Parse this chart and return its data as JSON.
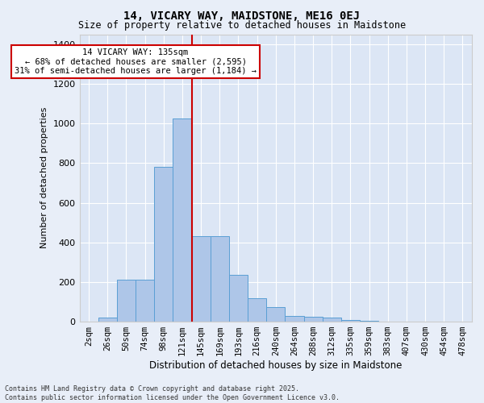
{
  "title1": "14, VICARY WAY, MAIDSTONE, ME16 0EJ",
  "title2": "Size of property relative to detached houses in Maidstone",
  "xlabel": "Distribution of detached houses by size in Maidstone",
  "ylabel": "Number of detached properties",
  "categories": [
    "2sqm",
    "26sqm",
    "50sqm",
    "74sqm",
    "98sqm",
    "121sqm",
    "145sqm",
    "169sqm",
    "193sqm",
    "216sqm",
    "240sqm",
    "264sqm",
    "288sqm",
    "312sqm",
    "335sqm",
    "359sqm",
    "383sqm",
    "407sqm",
    "430sqm",
    "454sqm",
    "478sqm"
  ],
  "values": [
    0,
    20,
    210,
    210,
    780,
    1025,
    430,
    430,
    235,
    120,
    75,
    30,
    25,
    20,
    10,
    5,
    2,
    0,
    0,
    0,
    0
  ],
  "bar_color": "#aec6e8",
  "bar_edge_color": "#5a9fd4",
  "fig_background": "#e8eef8",
  "ax_background": "#dce6f5",
  "grid_color": "#ffffff",
  "red_line_x": 5.5,
  "annotation_text": "14 VICARY WAY: 135sqm\n← 68% of detached houses are smaller (2,595)\n31% of semi-detached houses are larger (1,184) →",
  "annotation_box_color": "#ffffff",
  "annotation_box_edge": "#cc0000",
  "ylim": [
    0,
    1450
  ],
  "yticks": [
    0,
    200,
    400,
    600,
    800,
    1000,
    1200,
    1400
  ],
  "footer_line1": "Contains HM Land Registry data © Crown copyright and database right 2025.",
  "footer_line2": "Contains public sector information licensed under the Open Government Licence v3.0."
}
